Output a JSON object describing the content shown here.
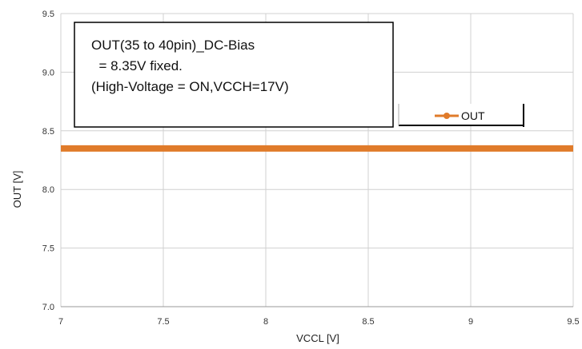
{
  "chart_data": {
    "type": "line",
    "xlabel": "VCCL [V]",
    "ylabel": "OUT [V]",
    "xlim": [
      7,
      9.5
    ],
    "ylim": [
      7.0,
      9.5
    ],
    "xticks": [
      "7",
      "7.5",
      "8",
      "8.5",
      "9",
      "9.5"
    ],
    "yticks": [
      "7.0",
      "7.5",
      "8.0",
      "8.5",
      "9.0",
      "9.5"
    ],
    "grid": true,
    "legend": "top-right",
    "series": [
      {
        "name": "OUT",
        "color": "#e07b2a",
        "x": [
          7,
          9.5
        ],
        "y": [
          8.35,
          8.35
        ]
      }
    ],
    "annotation": {
      "lines": [
        "OUT(35 to 40pin)_DC-Bias",
        "  = 8.35V fixed.",
        "(High-Voltage = ON,VCCH=17V)"
      ]
    }
  }
}
